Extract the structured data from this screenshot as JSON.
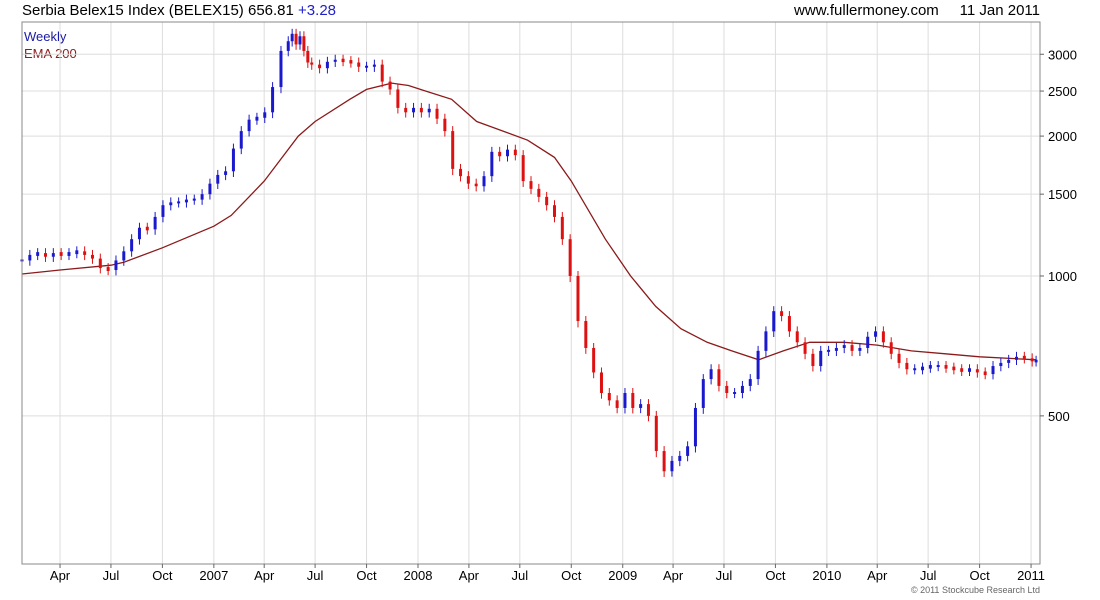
{
  "header": {
    "title": "Serbia Belex15 Index (BELEX15)",
    "last": "656.81",
    "change": "+3.28",
    "source": "www.fullermoney.com",
    "date": "11 Jan 2011"
  },
  "legend": {
    "weekly": "Weekly",
    "ema": "EMA 200"
  },
  "copyright": "© 2011 Stockcube Research Ltd",
  "colors": {
    "up": "#1a1acc",
    "down": "#dd1111",
    "ema": "#8b1a1a",
    "grid": "#dddddd",
    "frame": "#888888"
  },
  "chart_data": {
    "type": "line",
    "title": "Serbia Belex15 Index (BELEX15)",
    "xlabel": "",
    "ylabel": "",
    "ylim": [
      240,
      3520
    ],
    "y_scale": "log",
    "x_range": [
      "2006-01-23",
      "2011-01-17"
    ],
    "grid": true,
    "legend_position": "top-left",
    "y_ticks": [
      "500",
      "1000",
      "1500",
      "2000",
      "2500",
      "3000"
    ],
    "x_ticks": [
      {
        "date": "2006-04-01",
        "label": "Apr"
      },
      {
        "date": "2006-07-01",
        "label": "Jul"
      },
      {
        "date": "2006-10-01",
        "label": "Oct"
      },
      {
        "date": "2007-01-01",
        "label": "2007"
      },
      {
        "date": "2007-04-01",
        "label": "Apr"
      },
      {
        "date": "2007-07-01",
        "label": "Jul"
      },
      {
        "date": "2007-10-01",
        "label": "Oct"
      },
      {
        "date": "2008-01-01",
        "label": "2008"
      },
      {
        "date": "2008-04-01",
        "label": "Apr"
      },
      {
        "date": "2008-07-01",
        "label": "Jul"
      },
      {
        "date": "2008-10-01",
        "label": "Oct"
      },
      {
        "date": "2009-01-01",
        "label": "2009"
      },
      {
        "date": "2009-04-01",
        "label": "Apr"
      },
      {
        "date": "2009-07-01",
        "label": "Jul"
      },
      {
        "date": "2009-10-01",
        "label": "Oct"
      },
      {
        "date": "2010-01-01",
        "label": "2010"
      },
      {
        "date": "2010-04-01",
        "label": "Apr"
      },
      {
        "date": "2010-07-01",
        "label": "Jul"
      },
      {
        "date": "2010-10-01",
        "label": "Oct"
      },
      {
        "date": "2011-01-01",
        "label": "2011"
      }
    ],
    "series": [
      {
        "name": "Weekly",
        "style": "candlestick",
        "points": [
          [
            "2006-01-23",
            1080
          ],
          [
            "2006-02-06",
            1110
          ],
          [
            "2006-02-20",
            1120
          ],
          [
            "2006-03-06",
            1100
          ],
          [
            "2006-03-20",
            1120
          ],
          [
            "2006-04-03",
            1110
          ],
          [
            "2006-04-17",
            1120
          ],
          [
            "2006-05-01",
            1130
          ],
          [
            "2006-05-15",
            1110
          ],
          [
            "2006-05-29",
            1090
          ],
          [
            "2006-06-12",
            1040
          ],
          [
            "2006-06-26",
            1030
          ],
          [
            "2006-07-10",
            1080
          ],
          [
            "2006-07-24",
            1130
          ],
          [
            "2006-08-07",
            1200
          ],
          [
            "2006-08-21",
            1270
          ],
          [
            "2006-09-04",
            1260
          ],
          [
            "2006-09-18",
            1340
          ],
          [
            "2006-10-02",
            1420
          ],
          [
            "2006-10-16",
            1440
          ],
          [
            "2006-10-30",
            1440
          ],
          [
            "2006-11-13",
            1460
          ],
          [
            "2006-11-27",
            1460
          ],
          [
            "2006-12-11",
            1500
          ],
          [
            "2006-12-25",
            1580
          ],
          [
            "2007-01-08",
            1650
          ],
          [
            "2007-01-22",
            1680
          ],
          [
            "2007-02-05",
            1880
          ],
          [
            "2007-02-19",
            2050
          ],
          [
            "2007-03-05",
            2170
          ],
          [
            "2007-03-19",
            2190
          ],
          [
            "2007-04-02",
            2250
          ],
          [
            "2007-04-16",
            2550
          ],
          [
            "2007-05-01",
            3050
          ],
          [
            "2007-05-14",
            3200
          ],
          [
            "2007-05-21",
            3320
          ],
          [
            "2007-05-28",
            3150
          ],
          [
            "2007-06-04",
            3280
          ],
          [
            "2007-06-11",
            3050
          ],
          [
            "2007-06-18",
            2880
          ],
          [
            "2007-06-25",
            2850
          ],
          [
            "2007-07-09",
            2800
          ],
          [
            "2007-07-23",
            2890
          ],
          [
            "2007-08-06",
            2920
          ],
          [
            "2007-08-20",
            2900
          ],
          [
            "2007-09-03",
            2880
          ],
          [
            "2007-09-17",
            2820
          ],
          [
            "2007-10-01",
            2820
          ],
          [
            "2007-10-15",
            2850
          ],
          [
            "2007-10-29",
            2620
          ],
          [
            "2007-11-12",
            2520
          ],
          [
            "2007-11-26",
            2300
          ],
          [
            "2007-12-10",
            2250
          ],
          [
            "2007-12-24",
            2300
          ],
          [
            "2008-01-07",
            2250
          ],
          [
            "2008-01-21",
            2290
          ],
          [
            "2008-02-04",
            2180
          ],
          [
            "2008-02-18",
            2050
          ],
          [
            "2008-03-03",
            1700
          ],
          [
            "2008-03-17",
            1640
          ],
          [
            "2008-03-31",
            1580
          ],
          [
            "2008-04-14",
            1560
          ],
          [
            "2008-04-28",
            1640
          ],
          [
            "2008-05-12",
            1850
          ],
          [
            "2008-05-26",
            1810
          ],
          [
            "2008-06-09",
            1870
          ],
          [
            "2008-06-23",
            1820
          ],
          [
            "2008-07-07",
            1600
          ],
          [
            "2008-07-21",
            1540
          ],
          [
            "2008-08-04",
            1480
          ],
          [
            "2008-08-18",
            1420
          ],
          [
            "2008-09-01",
            1340
          ],
          [
            "2008-09-15",
            1200
          ],
          [
            "2008-09-29",
            1000
          ],
          [
            "2008-10-13",
            800
          ],
          [
            "2008-10-27",
            700
          ],
          [
            "2008-11-10",
            620
          ],
          [
            "2008-11-24",
            560
          ],
          [
            "2008-12-08",
            540
          ],
          [
            "2008-12-22",
            520
          ],
          [
            "2009-01-05",
            560
          ],
          [
            "2009-01-19",
            520
          ],
          [
            "2009-02-02",
            530
          ],
          [
            "2009-02-16",
            500
          ],
          [
            "2009-03-02",
            420
          ],
          [
            "2009-03-16",
            380
          ],
          [
            "2009-03-30",
            400
          ],
          [
            "2009-04-13",
            410
          ],
          [
            "2009-04-27",
            430
          ],
          [
            "2009-05-11",
            520
          ],
          [
            "2009-05-25",
            600
          ],
          [
            "2009-06-08",
            630
          ],
          [
            "2009-06-22",
            580
          ],
          [
            "2009-07-06",
            560
          ],
          [
            "2009-07-20",
            560
          ],
          [
            "2009-08-03",
            580
          ],
          [
            "2009-08-17",
            600
          ],
          [
            "2009-08-31",
            690
          ],
          [
            "2009-09-14",
            760
          ],
          [
            "2009-09-28",
            840
          ],
          [
            "2009-10-12",
            820
          ],
          [
            "2009-10-26",
            760
          ],
          [
            "2009-11-09",
            720
          ],
          [
            "2009-11-23",
            680
          ],
          [
            "2009-12-07",
            640
          ],
          [
            "2009-12-21",
            690
          ],
          [
            "2010-01-04",
            690
          ],
          [
            "2010-01-18",
            700
          ],
          [
            "2010-02-01",
            710
          ],
          [
            "2010-02-15",
            690
          ],
          [
            "2010-03-01",
            700
          ],
          [
            "2010-03-15",
            740
          ],
          [
            "2010-03-29",
            760
          ],
          [
            "2010-04-12",
            720
          ],
          [
            "2010-04-26",
            680
          ],
          [
            "2010-05-10",
            650
          ],
          [
            "2010-05-24",
            630
          ],
          [
            "2010-06-07",
            630
          ],
          [
            "2010-06-21",
            635
          ],
          [
            "2010-07-05",
            640
          ],
          [
            "2010-07-19",
            640
          ],
          [
            "2010-08-02",
            635
          ],
          [
            "2010-08-16",
            630
          ],
          [
            "2010-08-30",
            625
          ],
          [
            "2010-09-13",
            630
          ],
          [
            "2010-09-27",
            620
          ],
          [
            "2010-10-11",
            615
          ],
          [
            "2010-10-25",
            640
          ],
          [
            "2010-11-08",
            650
          ],
          [
            "2010-11-22",
            660
          ],
          [
            "2010-12-06",
            670
          ],
          [
            "2010-12-20",
            665
          ],
          [
            "2011-01-03",
            655
          ],
          [
            "2011-01-10",
            657
          ]
        ]
      },
      {
        "name": "EMA 200",
        "style": "line",
        "points": [
          [
            "2006-01-23",
            1010
          ],
          [
            "2006-04-01",
            1030
          ],
          [
            "2006-07-01",
            1055
          ],
          [
            "2006-07-24",
            1070
          ],
          [
            "2006-10-01",
            1150
          ],
          [
            "2007-01-01",
            1280
          ],
          [
            "2007-02-01",
            1350
          ],
          [
            "2007-04-01",
            1600
          ],
          [
            "2007-06-01",
            2000
          ],
          [
            "2007-07-01",
            2150
          ],
          [
            "2007-09-01",
            2400
          ],
          [
            "2007-10-01",
            2520
          ],
          [
            "2007-11-15",
            2600
          ],
          [
            "2007-12-15",
            2570
          ],
          [
            "2008-01-15",
            2500
          ],
          [
            "2008-03-01",
            2400
          ],
          [
            "2008-04-15",
            2150
          ],
          [
            "2008-06-01",
            2050
          ],
          [
            "2008-07-15",
            1960
          ],
          [
            "2008-09-01",
            1800
          ],
          [
            "2008-10-01",
            1600
          ],
          [
            "2008-12-01",
            1200
          ],
          [
            "2009-01-15",
            1000
          ],
          [
            "2009-03-01",
            860
          ],
          [
            "2009-04-15",
            770
          ],
          [
            "2009-06-01",
            720
          ],
          [
            "2009-07-15",
            690
          ],
          [
            "2009-09-01",
            660
          ],
          [
            "2009-10-15",
            690
          ],
          [
            "2009-12-01",
            720
          ],
          [
            "2010-02-01",
            720
          ],
          [
            "2010-04-01",
            710
          ],
          [
            "2010-06-01",
            690
          ],
          [
            "2010-08-01",
            680
          ],
          [
            "2010-10-01",
            670
          ],
          [
            "2011-01-10",
            660
          ]
        ]
      }
    ]
  }
}
